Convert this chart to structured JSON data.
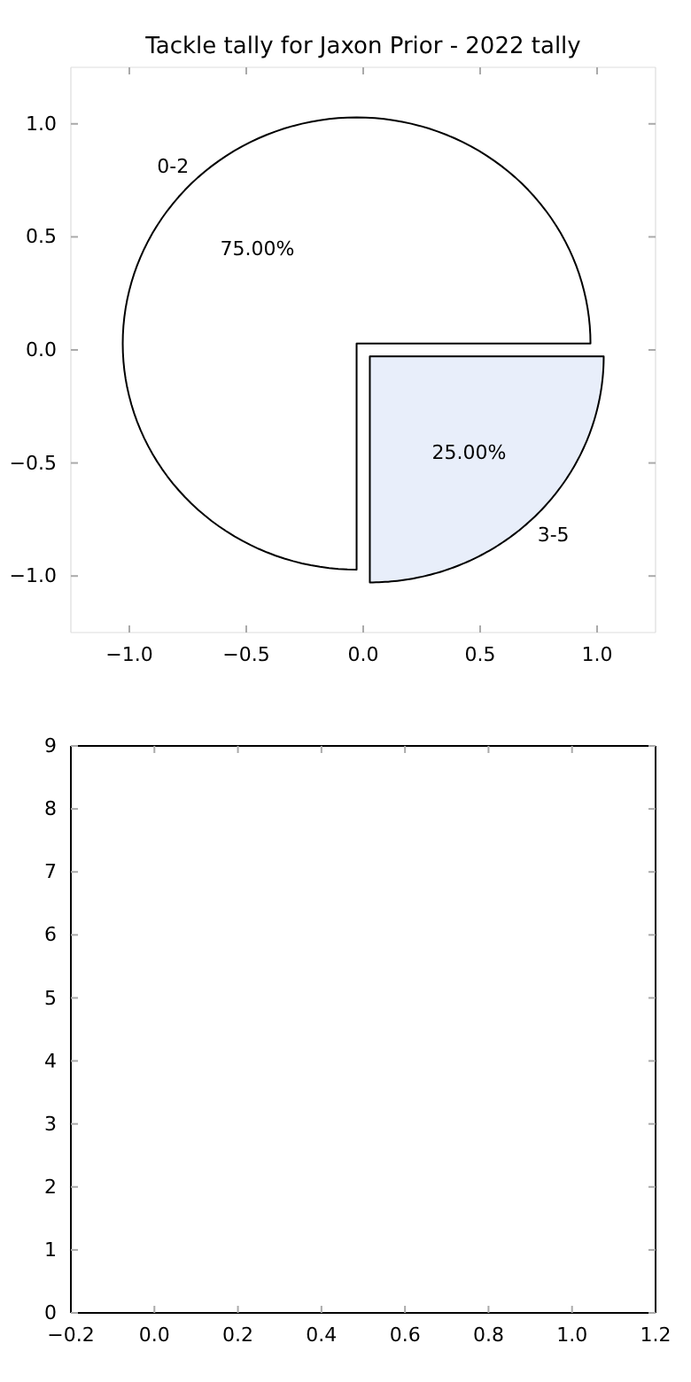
{
  "chart_data": [
    {
      "type": "line",
      "title": "Tackle tally for Jaxon Prior - 2022 tally",
      "xlim": [
        -1.25,
        1.25
      ],
      "ylim": [
        -1.25,
        1.25
      ],
      "xticks": [
        {
          "value": -1,
          "label": "−1.0"
        },
        {
          "value": -0.5,
          "label": "−0.5"
        },
        {
          "value": 0,
          "label": "0.0"
        },
        {
          "value": 0.5,
          "label": "0.5"
        },
        {
          "value": 1,
          "label": "1.0"
        }
      ],
      "yticks": [
        {
          "value": -1,
          "label": "−1.0"
        },
        {
          "value": -0.5,
          "label": "−0.5"
        },
        {
          "value": 0,
          "label": "0.0"
        },
        {
          "value": 0.5,
          "label": "0.5"
        },
        {
          "value": 1,
          "label": "1.0"
        }
      ]
    },
    {
      "type": "pie",
      "categories": [
        "0-2",
        "3-5"
      ],
      "values": [
        75,
        25
      ],
      "colors": [
        "#ffffff",
        "#e8eefa"
      ],
      "value_labels": [
        "75.00%",
        "25.00%"
      ]
    },
    {
      "type": "line",
      "xlim": [
        -0.2,
        1.2
      ],
      "ylim": [
        0,
        9
      ],
      "xticks": [
        {
          "value": -0.2,
          "label": "−0.2"
        },
        {
          "value": 0,
          "label": "0.0"
        },
        {
          "value": 0.2,
          "label": "0.2"
        },
        {
          "value": 0.4,
          "label": "0.4"
        },
        {
          "value": 0.6,
          "label": "0.6"
        },
        {
          "value": 0.8,
          "label": "0.8"
        },
        {
          "value": 1,
          "label": "1.0"
        },
        {
          "value": 1.2,
          "label": "1.2"
        }
      ],
      "yticks": [
        0,
        1,
        2,
        3,
        4,
        5,
        6,
        7,
        8,
        9
      ]
    }
  ]
}
